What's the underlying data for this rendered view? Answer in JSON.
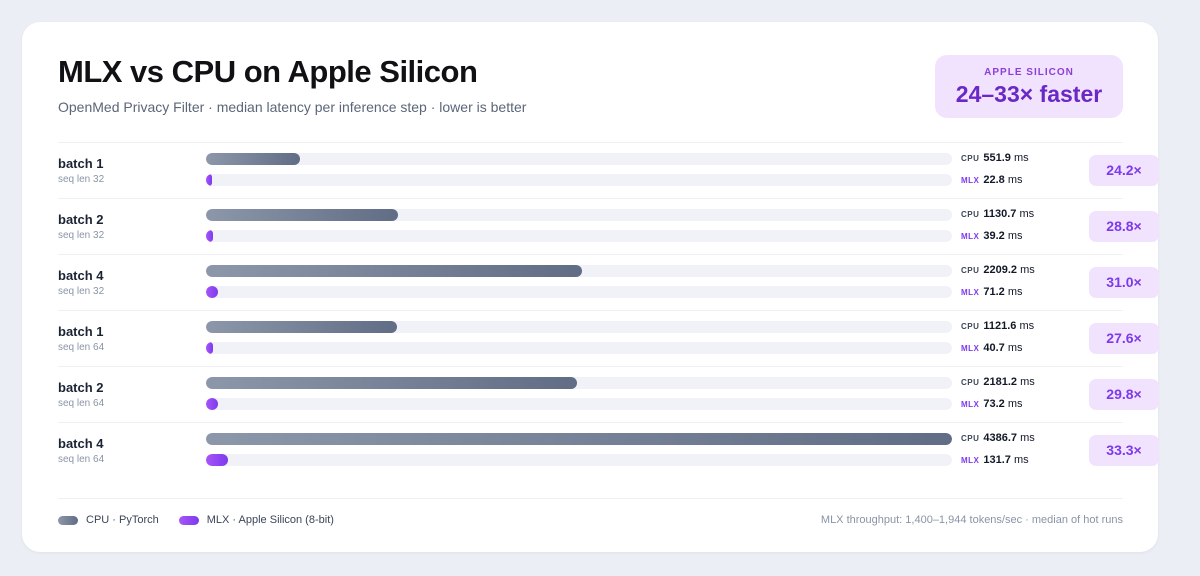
{
  "header": {
    "title": "MLX vs CPU on Apple Silicon",
    "subtitle": "OpenMed Privacy Filter · median latency per inference step · lower is better"
  },
  "badge": {
    "kicker": "APPLE SILICON",
    "value": "24–33× faster"
  },
  "legend": {
    "cpu_label": "CPU · PyTorch",
    "mlx_label": "MLX · Apple Silicon (8-bit)"
  },
  "footnote": "MLX throughput: 1,400–1,944 tokens/sec · median of hot runs",
  "tags": {
    "cpu": "CPU",
    "mlx": "MLX"
  },
  "colors": {
    "cpu": "#6b768c",
    "mlx": "#8b3fe6",
    "speedup_bg": "#f1e3fd"
  },
  "chart_data": {
    "type": "bar",
    "orientation": "horizontal",
    "unit": "ms",
    "xlim": [
      0,
      4386.7
    ],
    "rows": [
      {
        "label": "batch 1",
        "sub": "seq len 32",
        "cpu": 551.9,
        "mlx": 22.8,
        "cpu_text": "551.9",
        "mlx_text": "22.8",
        "speedup": "24.2×"
      },
      {
        "label": "batch 2",
        "sub": "seq len 32",
        "cpu": 1130.7,
        "mlx": 39.2,
        "cpu_text": "1130.7",
        "mlx_text": "39.2",
        "speedup": "28.8×"
      },
      {
        "label": "batch 4",
        "sub": "seq len 32",
        "cpu": 2209.2,
        "mlx": 71.2,
        "cpu_text": "2209.2",
        "mlx_text": "71.2",
        "speedup": "31.0×"
      },
      {
        "label": "batch 1",
        "sub": "seq len 64",
        "cpu": 1121.6,
        "mlx": 40.7,
        "cpu_text": "1121.6",
        "mlx_text": "40.7",
        "speedup": "27.6×"
      },
      {
        "label": "batch 2",
        "sub": "seq len 64",
        "cpu": 2181.2,
        "mlx": 73.2,
        "cpu_text": "2181.2",
        "mlx_text": "73.2",
        "speedup": "29.8×"
      },
      {
        "label": "batch 4",
        "sub": "seq len 64",
        "cpu": 4386.7,
        "mlx": 131.7,
        "cpu_text": "4386.7",
        "mlx_text": "131.7",
        "speedup": "33.3×"
      }
    ]
  }
}
